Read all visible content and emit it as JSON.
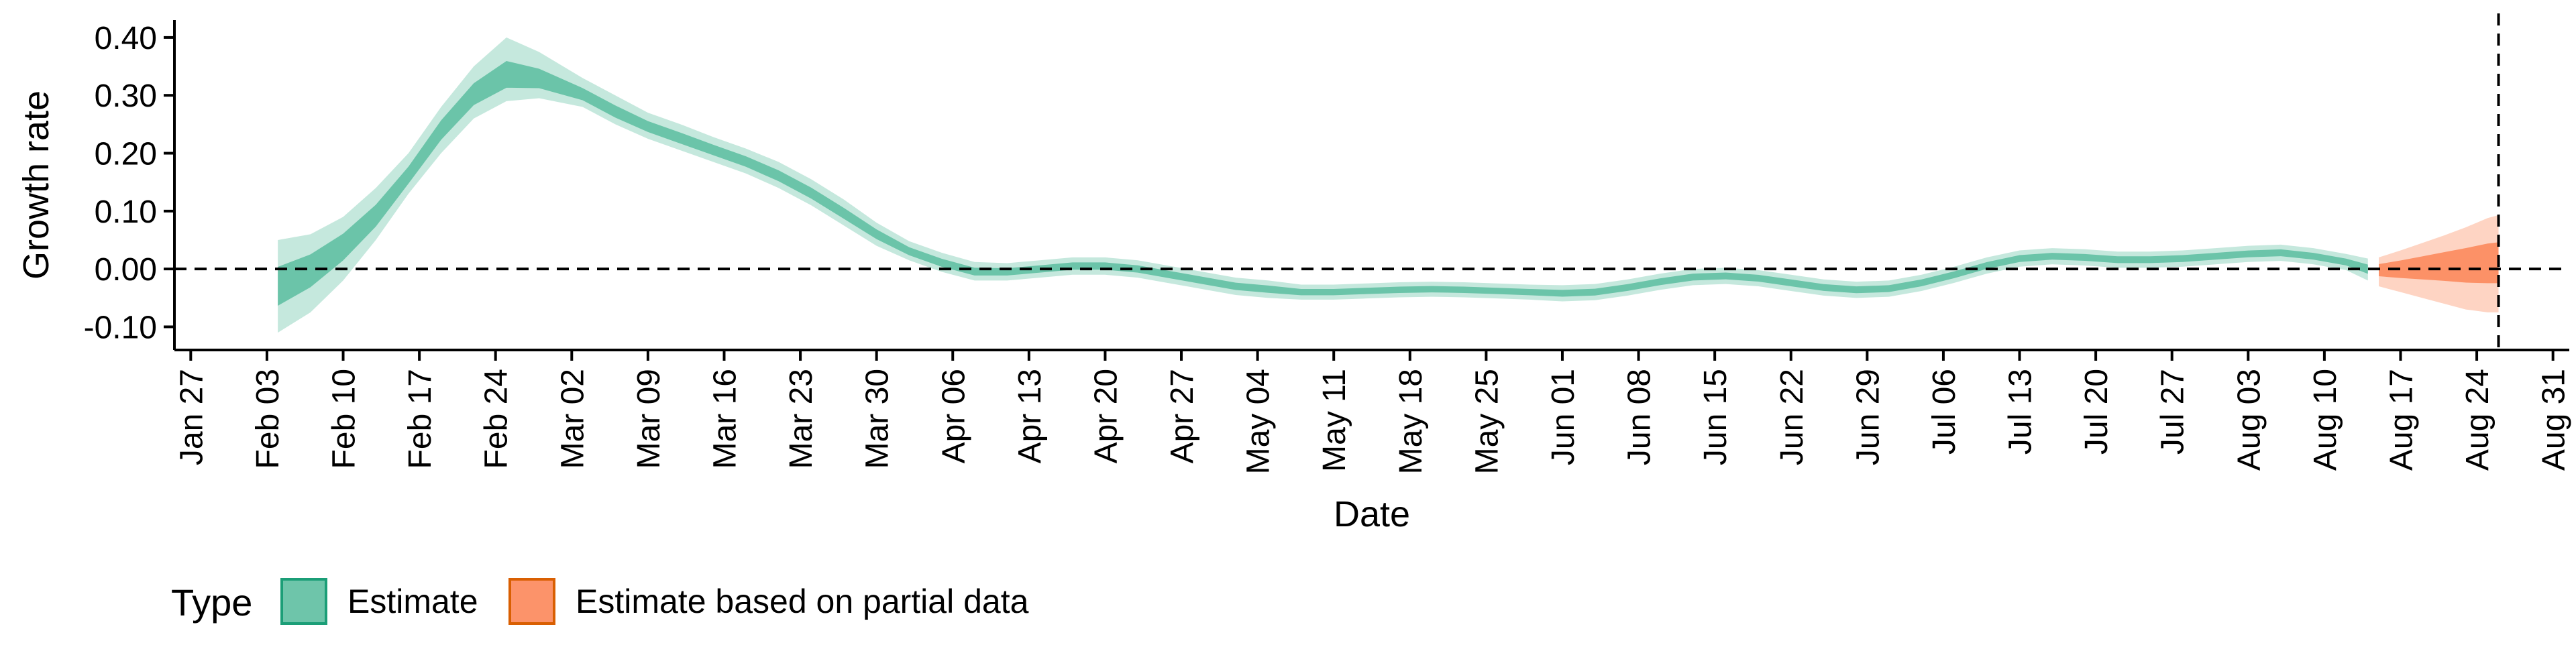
{
  "chart_data": {
    "type": "area",
    "xlabel": "Date",
    "ylabel": "Growth rate",
    "x_ticks": [
      "Jan 27",
      "Feb 03",
      "Feb 10",
      "Feb 17",
      "Feb 24",
      "Mar 02",
      "Mar 09",
      "Mar 16",
      "Mar 23",
      "Mar 30",
      "Apr 06",
      "Apr 13",
      "Apr 20",
      "Apr 27",
      "May 04",
      "May 11",
      "May 18",
      "May 25",
      "Jun 01",
      "Jun 08",
      "Jun 15",
      "Jun 22",
      "Jun 29",
      "Jul 06",
      "Jul 13",
      "Jul 20",
      "Jul 27",
      "Aug 03",
      "Aug 10",
      "Aug 17",
      "Aug 24",
      "Aug 31"
    ],
    "y_ticks": [
      "-0.10",
      "0.00",
      "0.10",
      "0.20",
      "0.30",
      "0.40"
    ],
    "ylim": [
      -0.14,
      0.43
    ],
    "xlim_days": [
      -1.5,
      218.5
    ],
    "reference_hline": 0.0,
    "reference_vline": "Aug 26",
    "grid": false,
    "legend": {
      "position": "bottom-left",
      "title": "Type",
      "entries": [
        {
          "label": "Estimate",
          "fill": "#66c2a5",
          "stroke": "#1b9e77"
        },
        {
          "label": "Estimate based on partial data",
          "fill": "#fc8d62",
          "stroke": "#d95f02"
        }
      ]
    },
    "colors": {
      "estimate": "#66c2a5",
      "partial": "#fc8d62"
    },
    "series": [
      {
        "name": "Estimate",
        "dates": [
          "Feb 04",
          "Feb 07",
          "Feb 10",
          "Feb 13",
          "Feb 16",
          "Feb 19",
          "Feb 22",
          "Feb 25",
          "Feb 28",
          "Mar 03",
          "Mar 06",
          "Mar 09",
          "Mar 12",
          "Mar 15",
          "Mar 18",
          "Mar 21",
          "Mar 24",
          "Mar 27",
          "Mar 30",
          "Apr 02",
          "Apr 05",
          "Apr 08",
          "Apr 11",
          "Apr 14",
          "Apr 17",
          "Apr 20",
          "Apr 23",
          "Apr 26",
          "Apr 29",
          "May 02",
          "May 05",
          "May 08",
          "May 11",
          "May 14",
          "May 17",
          "May 20",
          "May 23",
          "May 26",
          "May 29",
          "Jun 01",
          "Jun 04",
          "Jun 07",
          "Jun 10",
          "Jun 13",
          "Jun 16",
          "Jun 19",
          "Jun 22",
          "Jun 25",
          "Jun 28",
          "Jul 01",
          "Jul 04",
          "Jul 07",
          "Jul 10",
          "Jul 13",
          "Jul 16",
          "Jul 19",
          "Jul 22",
          "Jul 25",
          "Jul 28",
          "Jul 31",
          "Aug 03",
          "Aug 06",
          "Aug 09",
          "Aug 12",
          "Aug 14"
        ],
        "median": [
          -0.03,
          0.0,
          0.04,
          0.09,
          0.16,
          0.24,
          0.3,
          0.33,
          0.325,
          0.3,
          0.27,
          0.245,
          0.225,
          0.205,
          0.185,
          0.16,
          0.13,
          0.095,
          0.06,
          0.03,
          0.01,
          -0.005,
          -0.005,
          0.0,
          0.005,
          0.005,
          0.0,
          -0.01,
          -0.02,
          -0.03,
          -0.035,
          -0.04,
          -0.04,
          -0.038,
          -0.036,
          -0.035,
          -0.036,
          -0.038,
          -0.04,
          -0.042,
          -0.04,
          -0.032,
          -0.022,
          -0.014,
          -0.012,
          -0.016,
          -0.024,
          -0.032,
          -0.036,
          -0.034,
          -0.024,
          -0.01,
          0.006,
          0.018,
          0.022,
          0.02,
          0.016,
          0.016,
          0.018,
          0.022,
          0.026,
          0.028,
          0.022,
          0.012,
          0.0
        ],
        "lower_90": [
          -0.11,
          -0.075,
          -0.02,
          0.05,
          0.13,
          0.2,
          0.26,
          0.29,
          0.295,
          0.28,
          0.25,
          0.225,
          0.205,
          0.185,
          0.165,
          0.14,
          0.11,
          0.075,
          0.04,
          0.015,
          -0.005,
          -0.02,
          -0.02,
          -0.015,
          -0.01,
          -0.01,
          -0.015,
          -0.025,
          -0.035,
          -0.045,
          -0.05,
          -0.053,
          -0.053,
          -0.051,
          -0.049,
          -0.048,
          -0.049,
          -0.051,
          -0.053,
          -0.056,
          -0.054,
          -0.046,
          -0.036,
          -0.028,
          -0.026,
          -0.03,
          -0.038,
          -0.046,
          -0.05,
          -0.048,
          -0.038,
          -0.024,
          -0.008,
          0.004,
          0.008,
          0.006,
          0.002,
          0.002,
          0.004,
          0.008,
          0.012,
          0.014,
          0.008,
          -0.002,
          -0.02
        ],
        "upper_90": [
          0.05,
          0.06,
          0.09,
          0.14,
          0.2,
          0.28,
          0.35,
          0.4,
          0.375,
          0.33,
          0.3,
          0.27,
          0.25,
          0.228,
          0.208,
          0.185,
          0.155,
          0.12,
          0.08,
          0.048,
          0.028,
          0.012,
          0.01,
          0.015,
          0.02,
          0.02,
          0.015,
          0.005,
          -0.005,
          -0.015,
          -0.02,
          -0.027,
          -0.027,
          -0.025,
          -0.023,
          -0.022,
          -0.023,
          -0.025,
          -0.027,
          -0.028,
          -0.026,
          -0.018,
          -0.008,
          0.0,
          0.002,
          -0.002,
          -0.01,
          -0.018,
          -0.022,
          -0.02,
          -0.01,
          0.004,
          0.02,
          0.032,
          0.036,
          0.034,
          0.03,
          0.03,
          0.032,
          0.036,
          0.04,
          0.042,
          0.036,
          0.026,
          0.018
        ]
      },
      {
        "name": "Estimate based on partial data",
        "dates": [
          "Aug 15",
          "Aug 17",
          "Aug 19",
          "Aug 21",
          "Aug 23",
          "Aug 25",
          "Aug 26"
        ],
        "median": [
          0.0,
          0.002,
          0.005,
          0.008,
          0.01,
          0.012,
          0.012
        ],
        "lower_90": [
          -0.03,
          -0.04,
          -0.05,
          -0.06,
          -0.07,
          -0.075,
          -0.075
        ],
        "upper_90": [
          0.02,
          0.032,
          0.045,
          0.058,
          0.072,
          0.088,
          0.093
        ]
      }
    ]
  }
}
